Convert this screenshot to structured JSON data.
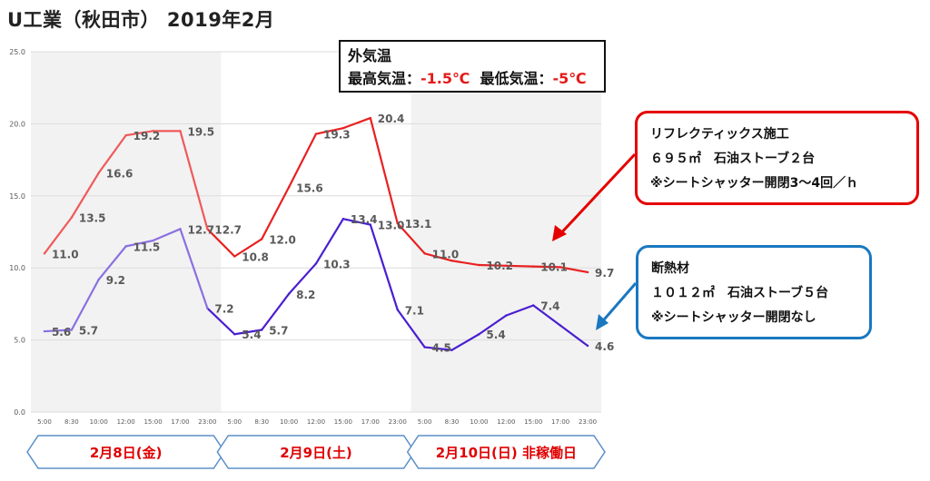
{
  "title": "U工業（秋田市） 2019年2月",
  "temp_box": {
    "line1": "外気温",
    "max_label": "最高気温：",
    "max_value": "-1.5℃",
    "min_label": "最低気温：",
    "min_value": "-5℃"
  },
  "callout_red": {
    "line1": "リフレクティックス施工",
    "line2": "６９５㎡　石油ストーブ２台",
    "line3": "※シートシャッター開閉3〜4回／ｈ"
  },
  "callout_blue": {
    "line1": "断熱材",
    "line2": "１０１２㎡　石油ストーブ５台",
    "line3": "※シートシャッター開閉なし"
  },
  "colors": {
    "red_series": "#e82020",
    "red_series_light": "#ef5a5a",
    "blue_series": "#4a1ed0",
    "blue_series_light": "#8a70e0",
    "band": "#f2f2f2",
    "grid": "#dcdcdc",
    "label": "#595959",
    "day_label": "#e00000",
    "arrow_stroke": "#5b8fc9"
  },
  "chart_data": {
    "type": "line",
    "x": [
      "5:00",
      "8:30",
      "10:00",
      "12:00",
      "15:00",
      "17:00",
      "23:00",
      "5:00",
      "8:30",
      "10:00",
      "12:00",
      "15:00",
      "17:00",
      "23:00",
      "5:00",
      "8:30",
      "10:00",
      "12:00",
      "15:00",
      "17:00",
      "23:00"
    ],
    "ylim": [
      0,
      25
    ],
    "yticks": [
      "0.0",
      "5.0",
      "10.0",
      "15.0",
      "20.0",
      "25.0"
    ],
    "grid": true,
    "series": [
      {
        "color_key": "red",
        "values": [
          11.0,
          13.5,
          16.6,
          19.2,
          19.5,
          19.5,
          12.7,
          10.8,
          12.0,
          15.6,
          19.3,
          19.7,
          20.4,
          13.1,
          11.0,
          10.5,
          10.2,
          10.15,
          10.1,
          10.05,
          9.7
        ],
        "labels": [
          "11.0",
          "13.5",
          "16.6",
          "19.2",
          "",
          "19.5",
          "12.7",
          "10.8",
          "12.0",
          "15.6",
          "19.3",
          "",
          "20.4",
          "13.1",
          "11.0",
          "",
          "10.2",
          "",
          "10.1",
          "",
          "9.7"
        ]
      },
      {
        "color_key": "blue",
        "values": [
          5.6,
          5.7,
          9.2,
          11.5,
          11.9,
          12.7,
          7.2,
          5.4,
          5.7,
          8.2,
          10.3,
          13.4,
          13.0,
          7.1,
          4.5,
          4.3,
          5.4,
          6.7,
          7.4,
          6.0,
          4.6
        ],
        "labels": [
          "5.6",
          "5.7",
          "9.2",
          "11.5",
          "",
          "12.7",
          "7.2",
          "5.4",
          "5.7",
          "8.2",
          "10.3",
          "13.4",
          "13.0",
          "7.1",
          "4.5",
          "",
          "5.4",
          "",
          "7.4",
          "",
          "4.6"
        ]
      }
    ],
    "days": [
      {
        "label": "2月8日(金)",
        "start": 0,
        "end": 6
      },
      {
        "label": "2月9日(土)",
        "start": 7,
        "end": 13
      },
      {
        "label": "2月10日(日) 非稼働日",
        "start": 14,
        "end": 20
      }
    ],
    "shaded_days": [
      0,
      2
    ]
  }
}
